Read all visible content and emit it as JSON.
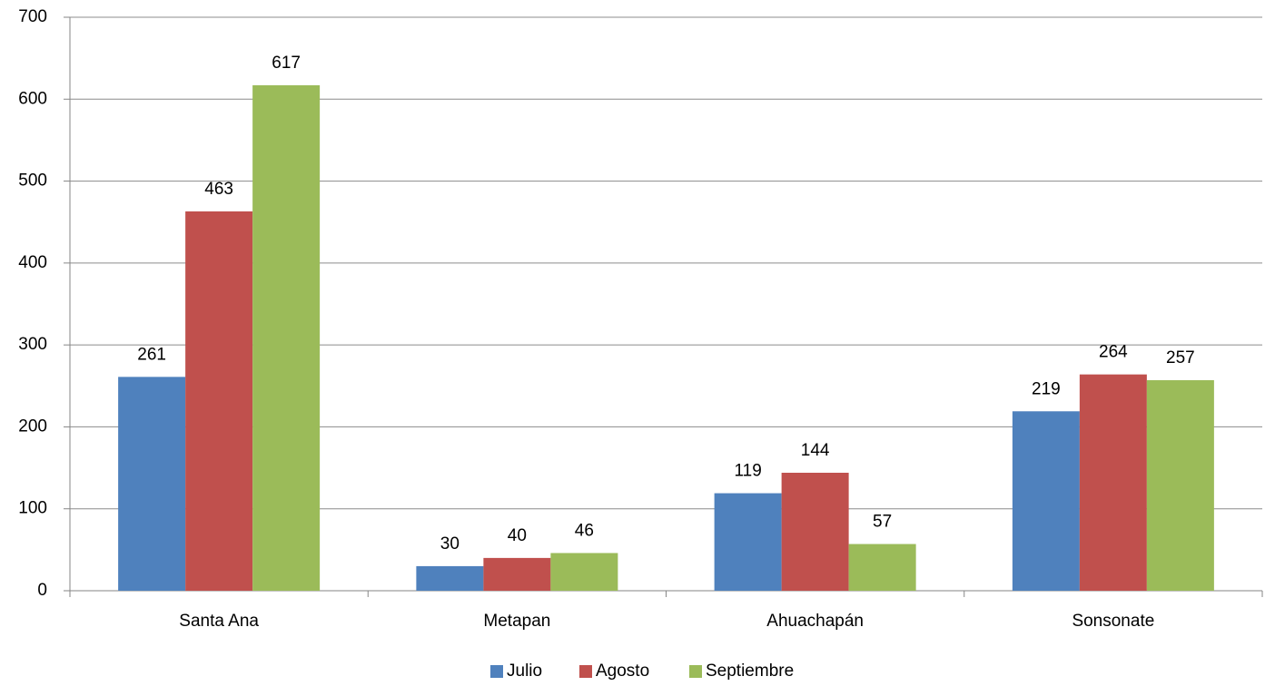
{
  "chart_data": {
    "type": "bar",
    "categories": [
      "Santa Ana",
      "Metapan",
      "Ahuachapán",
      "Sonsonate"
    ],
    "series": [
      {
        "name": "Julio",
        "color": "#4f81bd",
        "values": [
          261,
          30,
          119,
          219
        ]
      },
      {
        "name": "Agosto",
        "color": "#c0504d",
        "values": [
          463,
          40,
          144,
          264
        ]
      },
      {
        "name": "Septiembre",
        "color": "#9bbb59",
        "values": [
          617,
          46,
          57,
          257
        ]
      }
    ],
    "ylim": [
      0,
      700
    ],
    "yticks": [
      0,
      100,
      200,
      300,
      400,
      500,
      600,
      700
    ],
    "grid": true,
    "legend": "bottom"
  }
}
